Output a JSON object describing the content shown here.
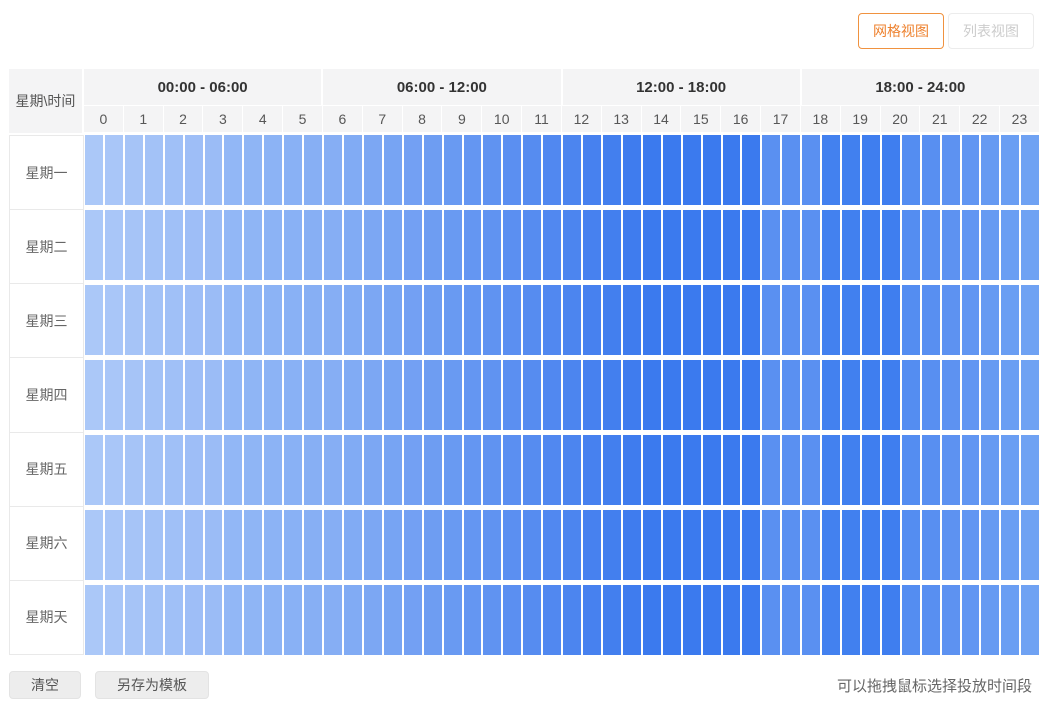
{
  "view_switcher": {
    "grid_view_label": "网格视图",
    "list_view_label": "列表视图"
  },
  "schedule": {
    "corner_label": "星期\\时间",
    "time_groups": [
      "00:00 - 06:00",
      "06:00 - 12:00",
      "12:00 - 18:00",
      "18:00 - 24:00"
    ],
    "hours": [
      "0",
      "1",
      "2",
      "3",
      "4",
      "5",
      "6",
      "7",
      "8",
      "9",
      "10",
      "11",
      "12",
      "13",
      "14",
      "15",
      "16",
      "17",
      "18",
      "19",
      "20",
      "21",
      "22",
      "23"
    ],
    "days": [
      "星期一",
      "星期二",
      "星期三",
      "星期四",
      "星期五",
      "星期六",
      "星期天"
    ],
    "halfhour_colors": [
      "#abc8f8",
      "#a9c6f8",
      "#a6c4f7",
      "#a3c2f7",
      "#a0c0f7",
      "#9ebef7",
      "#9bbcf6",
      "#92b7f6",
      "#8fb5f5",
      "#8cb3f5",
      "#89b1f5",
      "#87aff4",
      "#86aef4",
      "#81abf4",
      "#7ca7f3",
      "#77a4f3",
      "#73a0f3",
      "#6e9df2",
      "#699af2",
      "#6496f2",
      "#6093f1",
      "#5b8ff1",
      "#568cf0",
      "#5188f0",
      "#4c85ef",
      "#4781ef",
      "#437fee",
      "#3f7cee",
      "#3b7aee",
      "#3b7aee",
      "#3b7aee",
      "#3b7aee",
      "#3b7aee",
      "#3b7aee",
      "#5a90f1",
      "#5a90f1",
      "#5a90f1",
      "#4381ef",
      "#4180ef",
      "#3f7eef",
      "#3f7eef",
      "#548df1",
      "#588ff1",
      "#5d92f1",
      "#6196f2",
      "#669af2",
      "#6a9ef3",
      "#6fa2f3"
    ]
  },
  "footer": {
    "clear_label": "清空",
    "save_template_label": "另存为模板",
    "hint": "可以拖拽鼠标选择投放时间段"
  },
  "colors": {
    "accent_orange": "#ee822f",
    "accent_orange_border": "#f0923f",
    "inactive_text": "#cccccc",
    "header_bg": "#f4f4f5",
    "label_text": "#666666"
  }
}
